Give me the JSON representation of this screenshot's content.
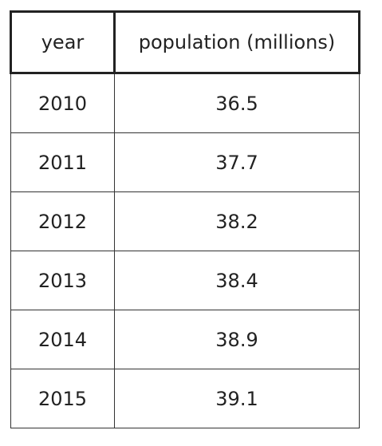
{
  "table": {
    "headers": [
      "year",
      "population (millions)"
    ],
    "rows": [
      [
        "2010",
        "36.5"
      ],
      [
        "2011",
        "37.7"
      ],
      [
        "2012",
        "38.2"
      ],
      [
        "2013",
        "38.4"
      ],
      [
        "2014",
        "38.9"
      ],
      [
        "2015",
        "39.1"
      ]
    ]
  },
  "chart_data": {
    "type": "table",
    "columns": [
      "year",
      "population (millions)"
    ],
    "x": [
      2010,
      2011,
      2012,
      2013,
      2014,
      2015
    ],
    "values": [
      36.5,
      37.7,
      38.2,
      38.4,
      38.9,
      39.1
    ]
  }
}
